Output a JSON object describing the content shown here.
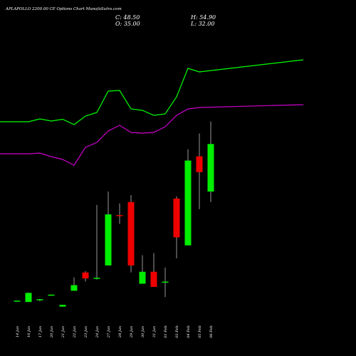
{
  "header": {
    "title": "APLAPOLLO 2200.00 CE Options  Chart MunafaSutra.com",
    "close_label": "C:",
    "close_value": "48.50",
    "high_label": "H:",
    "high_value": "54.90",
    "open_label": "O:",
    "open_value": "35.00",
    "low_label": "L:",
    "low_value": "32.00"
  },
  "colors": {
    "background": "#000000",
    "bullish": "#00ee00",
    "bearish": "#ee0000",
    "wick": "#999999",
    "upper_line": "#00ff00",
    "lower_line": "#cc00cc",
    "text": "#ffffff"
  },
  "chart_data": {
    "type": "candlestick",
    "title": "APLAPOLLO 2200.00 CE Options  Chart MunafaSutra.com",
    "x_labels": [
      "14 Jan",
      "16 Jan",
      "17 Jan",
      "20 Jan",
      "21 Jan",
      "22 Jan",
      "23 Jan",
      "24 Jan",
      "27 Jan",
      "28 Jan",
      "29 Jan",
      "30 Jan",
      "31 Jan",
      "01 Feb",
      "03 Feb",
      "04 Feb",
      "05 Feb",
      "06 Feb"
    ],
    "ylim": [
      0,
      70
    ],
    "candles": [
      {
        "date": "14 Jan",
        "open": 4.0,
        "high": 4.0,
        "low": 4.0,
        "close": 4.0
      },
      {
        "date": "16 Jan",
        "open": 3.6,
        "high": 6.3,
        "low": 3.6,
        "close": 6.2
      },
      {
        "date": "17 Jan",
        "open": 4.1,
        "high": 4.5,
        "low": 3.8,
        "close": 4.4
      },
      {
        "date": "20 Jan",
        "open": 5.6,
        "high": 5.8,
        "low": 5.6,
        "close": 5.7
      },
      {
        "date": "21 Jan",
        "open": 2.3,
        "high": 2.8,
        "low": 2.3,
        "close": 2.8
      },
      {
        "date": "22 Jan",
        "open": 6.8,
        "high": 10.6,
        "low": 6.8,
        "close": 8.4
      },
      {
        "date": "23 Jan",
        "open": 12.0,
        "high": 12.4,
        "low": 9.4,
        "close": 10.3
      },
      {
        "date": "24 Jan",
        "open": 10.4,
        "high": 31.2,
        "low": 10.0,
        "close": 10.5
      },
      {
        "date": "27 Jan",
        "open": 14.0,
        "high": 35.0,
        "low": 14.0,
        "close": 28.5
      },
      {
        "date": "28 Jan",
        "open": 28.3,
        "high": 31.6,
        "low": 25.8,
        "close": 28.0
      },
      {
        "date": "29 Jan",
        "open": 32.0,
        "high": 34.0,
        "low": 12.0,
        "close": 14.0
      },
      {
        "date": "30 Jan",
        "open": 8.8,
        "high": 16.9,
        "low": 8.8,
        "close": 12.2
      },
      {
        "date": "31 Jan",
        "open": 12.2,
        "high": 17.5,
        "low": 7.9,
        "close": 7.9
      },
      {
        "date": "01 Feb",
        "open": 9.2,
        "high": 13.4,
        "low": 5.0,
        "close": 9.4
      },
      {
        "date": "03 Feb",
        "open": 33.0,
        "high": 33.6,
        "low": 16.0,
        "close": 22.0
      },
      {
        "date": "04 Feb",
        "open": 19.7,
        "high": 47.0,
        "low": 19.7,
        "close": 43.8
      },
      {
        "date": "05 Feb",
        "open": 45.0,
        "high": 51.5,
        "low": 30.0,
        "close": 40.5
      },
      {
        "date": "06 Feb",
        "open": 35.0,
        "high": 54.9,
        "low": 32.0,
        "close": 48.5
      }
    ],
    "overlay_lines": [
      {
        "color": "#00ff00",
        "y_levels": [
          0.342,
          0.342,
          0.334,
          0.34,
          0.335,
          0.35,
          0.326,
          0.316,
          0.256,
          0.254,
          0.306,
          0.31,
          0.324,
          0.32,
          0.272,
          0.192,
          0.202,
          0.168
        ]
      },
      {
        "color": "#cc00cc",
        "y_levels": [
          0.432,
          0.432,
          0.43,
          0.44,
          0.448,
          0.464,
          0.414,
          0.4,
          0.368,
          0.352,
          0.372,
          0.374,
          0.372,
          0.356,
          0.324,
          0.306,
          0.302,
          0.294
        ]
      }
    ]
  }
}
